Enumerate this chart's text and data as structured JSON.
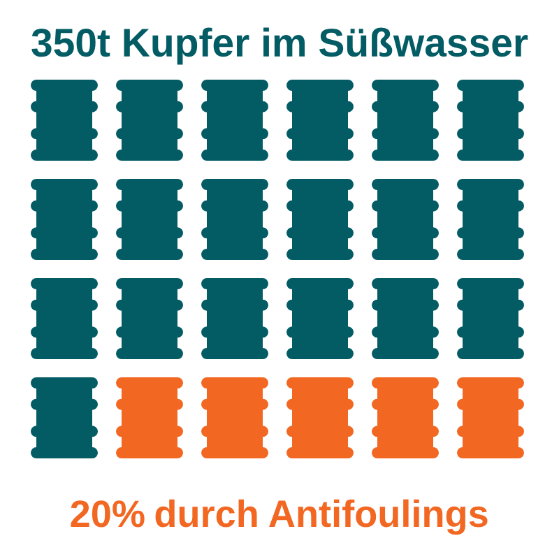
{
  "chart_data": {
    "type": "other",
    "title": "350t Kupfer im Süßwasser",
    "categories": [
      null,
      "durch Antifoulings"
    ],
    "values": [
      null,
      20
    ],
    "value_labels": [
      null,
      "20%"
    ],
    "colors": [
      "#035b64",
      "#f26722"
    ]
  }
}
